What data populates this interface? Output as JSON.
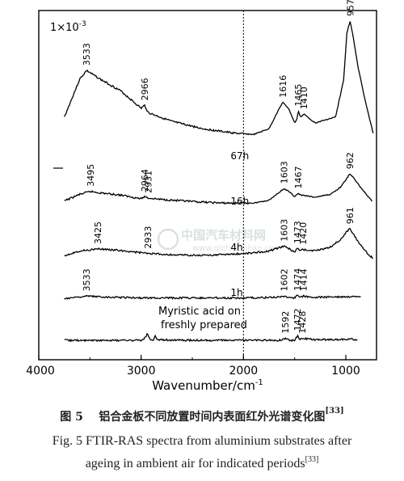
{
  "chart_data": {
    "type": "line",
    "xlabel": "Wavenumber/cm",
    "xlabel_exp": "-1",
    "xlim": [
      4000,
      700
    ],
    "x_ticks": [
      4000,
      3000,
      2000,
      1000
    ],
    "scale_label": "1×10",
    "scale_exp": "-3",
    "dashed_line_x": 2000,
    "series": [
      {
        "name": "67h",
        "label_x": 2000,
        "anchors": [
          [
            3750,
            0.34
          ],
          [
            3600,
            0.6
          ],
          [
            3533,
            0.66
          ],
          [
            3400,
            0.6
          ],
          [
            3200,
            0.52
          ],
          [
            3000,
            0.4
          ],
          [
            2966,
            0.42
          ],
          [
            2930,
            0.37
          ],
          [
            2700,
            0.31
          ],
          [
            2400,
            0.26
          ],
          [
            2100,
            0.23
          ],
          [
            1900,
            0.22
          ],
          [
            1750,
            0.26
          ],
          [
            1650,
            0.4
          ],
          [
            1616,
            0.44
          ],
          [
            1560,
            0.4
          ],
          [
            1500,
            0.3
          ],
          [
            1480,
            0.32
          ],
          [
            1465,
            0.38
          ],
          [
            1440,
            0.34
          ],
          [
            1410,
            0.36
          ],
          [
            1300,
            0.3
          ],
          [
            1100,
            0.34
          ],
          [
            1020,
            0.6
          ],
          [
            990,
            0.92
          ],
          [
            957,
            1.0
          ],
          [
            930,
            0.9
          ],
          [
            880,
            0.68
          ],
          [
            800,
            0.42
          ],
          [
            730,
            0.22
          ]
        ],
        "peaks": [
          {
            "label": "3533",
            "x": 3533
          },
          {
            "label": "2966",
            "x": 2966
          },
          {
            "label": "1616",
            "x": 1616
          },
          {
            "label": "1465",
            "x": 1465
          },
          {
            "label": "1410",
            "x": 1410
          },
          {
            "label": "957",
            "x": 957
          }
        ]
      },
      {
        "name": "16h",
        "label_x": 2000,
        "anchors": [
          [
            3750,
            0.15
          ],
          [
            3600,
            0.24
          ],
          [
            3495,
            0.28
          ],
          [
            3400,
            0.26
          ],
          [
            3200,
            0.23
          ],
          [
            3000,
            0.18
          ],
          [
            2964,
            0.21
          ],
          [
            2931,
            0.19
          ],
          [
            2800,
            0.17
          ],
          [
            2500,
            0.14
          ],
          [
            2200,
            0.12
          ],
          [
            1900,
            0.12
          ],
          [
            1750,
            0.16
          ],
          [
            1650,
            0.27
          ],
          [
            1603,
            0.32
          ],
          [
            1560,
            0.28
          ],
          [
            1500,
            0.21
          ],
          [
            1467,
            0.25
          ],
          [
            1440,
            0.23
          ],
          [
            1300,
            0.2
          ],
          [
            1150,
            0.24
          ],
          [
            1050,
            0.34
          ],
          [
            990,
            0.46
          ],
          [
            962,
            0.52
          ],
          [
            930,
            0.48
          ],
          [
            880,
            0.38
          ],
          [
            800,
            0.24
          ],
          [
            740,
            0.14
          ]
        ],
        "peaks": [
          {
            "label": "3495",
            "x": 3495
          },
          {
            "label": "2964",
            "x": 2964
          },
          {
            "label": "2931",
            "x": 2931
          },
          {
            "label": "1603",
            "x": 1603
          },
          {
            "label": "1467",
            "x": 1467
          },
          {
            "label": "962",
            "x": 962
          }
        ]
      },
      {
        "name": "4h",
        "label_x": 2000,
        "anchors": [
          [
            3750,
            0.05
          ],
          [
            3600,
            0.12
          ],
          [
            3425,
            0.15
          ],
          [
            3300,
            0.14
          ],
          [
            3100,
            0.11
          ],
          [
            2933,
            0.08
          ],
          [
            2700,
            0.06
          ],
          [
            2400,
            0.05
          ],
          [
            2100,
            0.07
          ],
          [
            1900,
            0.09
          ],
          [
            1750,
            0.12
          ],
          [
            1650,
            0.17
          ],
          [
            1603,
            0.19
          ],
          [
            1560,
            0.16
          ],
          [
            1500,
            0.1
          ],
          [
            1473,
            0.16
          ],
          [
            1445,
            0.12
          ],
          [
            1420,
            0.14
          ],
          [
            1300,
            0.12
          ],
          [
            1150,
            0.18
          ],
          [
            1050,
            0.3
          ],
          [
            990,
            0.42
          ],
          [
            961,
            0.46
          ],
          [
            930,
            0.4
          ],
          [
            880,
            0.26
          ],
          [
            800,
            0.1
          ],
          [
            730,
            0.0
          ]
        ],
        "peaks": [
          {
            "label": "3425",
            "x": 3425
          },
          {
            "label": "2933",
            "x": 2933
          },
          {
            "label": "1603",
            "x": 1603
          },
          {
            "label": "1473",
            "x": 1473
          },
          {
            "label": "1420",
            "x": 1420
          },
          {
            "label": "961",
            "x": 961
          }
        ]
      },
      {
        "name": "1h",
        "label_x": 2000,
        "anchors": [
          [
            3750,
            0.04
          ],
          [
            3600,
            0.07
          ],
          [
            3533,
            0.08
          ],
          [
            3400,
            0.07
          ],
          [
            3200,
            0.06
          ],
          [
            3000,
            0.05
          ],
          [
            2700,
            0.05
          ],
          [
            2400,
            0.05
          ],
          [
            2100,
            0.05
          ],
          [
            1900,
            0.05
          ],
          [
            1700,
            0.06
          ],
          [
            1602,
            0.08
          ],
          [
            1550,
            0.06
          ],
          [
            1500,
            0.05
          ],
          [
            1474,
            0.09
          ],
          [
            1445,
            0.06
          ],
          [
            1414,
            0.08
          ],
          [
            1300,
            0.06
          ],
          [
            1100,
            0.07
          ],
          [
            900,
            0.07
          ],
          [
            850,
            0.06
          ]
        ],
        "peaks": [
          {
            "label": "3533",
            "x": 3533
          },
          {
            "label": "1602",
            "x": 1602
          },
          {
            "label": "1474",
            "x": 1474
          },
          {
            "label": "1414",
            "x": 1414
          }
        ]
      },
      {
        "name": "Myristic acid on freshly prepared",
        "label_lines": [
          "Myristic acid on",
          "freshly prepared"
        ],
        "anchors": [
          [
            3750,
            0.05
          ],
          [
            3600,
            0.05
          ],
          [
            3300,
            0.05
          ],
          [
            3000,
            0.05
          ],
          [
            2960,
            0.09
          ],
          [
            2940,
            0.16
          ],
          [
            2920,
            0.08
          ],
          [
            2880,
            0.05
          ],
          [
            2860,
            0.12
          ],
          [
            2840,
            0.06
          ],
          [
            2600,
            0.05
          ],
          [
            2200,
            0.05
          ],
          [
            1800,
            0.05
          ],
          [
            1650,
            0.05
          ],
          [
            1592,
            0.08
          ],
          [
            1540,
            0.05
          ],
          [
            1500,
            0.05
          ],
          [
            1472,
            0.12
          ],
          [
            1450,
            0.06
          ],
          [
            1428,
            0.08
          ],
          [
            1300,
            0.06
          ],
          [
            1100,
            0.06
          ],
          [
            950,
            0.07
          ],
          [
            880,
            0.06
          ]
        ],
        "peaks": [
          {
            "label": "1592",
            "x": 1592
          },
          {
            "label": "1472",
            "x": 1472
          },
          {
            "label": "1428",
            "x": 1428
          }
        ]
      }
    ]
  },
  "caption": {
    "zh_prefix": "图 5",
    "zh_text": "铝合金板不同放置时间内表面红外光谱变化图",
    "zh_ref": "[33]",
    "en_line1": "Fig. 5   FTIR-RAS spectra from aluminium substrates after",
    "en_line2": "ageing in ambient air for indicated periods",
    "en_ref": "[33]"
  },
  "watermark": {
    "line1": "中国汽车材料网",
    "line2": "www.qichecailiao.com"
  }
}
